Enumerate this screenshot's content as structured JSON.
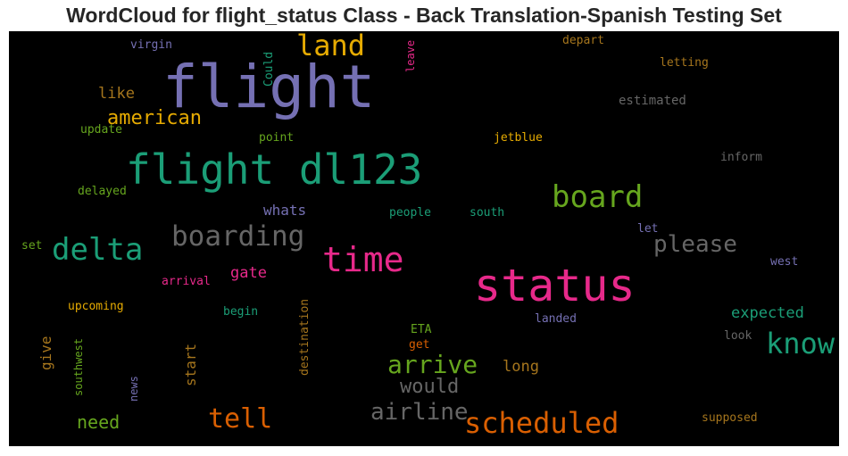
{
  "title": "WordCloud for flight_status Class - Back Translation-Spanish Testing Set",
  "palette": {
    "teal": "#1b9e77",
    "orange": "#d95f02",
    "purple": "#7570b3",
    "pink": "#e7298a",
    "green": "#66a61e",
    "gold": "#e6ab02",
    "brown": "#a6761d",
    "gray": "#666666",
    "background": "#000000"
  },
  "chart_data": {
    "type": "wordcloud",
    "words": [
      {
        "text": "flight",
        "color": "#7570b3",
        "vertical": false
      },
      {
        "text": "status",
        "color": "#e7298a",
        "vertical": false
      },
      {
        "text": "flight dl123",
        "color": "#1b9e77",
        "vertical": false
      },
      {
        "text": "time",
        "color": "#e7298a",
        "vertical": false
      },
      {
        "text": "scheduled",
        "color": "#d95f02",
        "vertical": false
      },
      {
        "text": "board",
        "color": "#66a61e",
        "vertical": false
      },
      {
        "text": "know",
        "color": "#1b9e77",
        "vertical": false
      },
      {
        "text": "delta",
        "color": "#1b9e77",
        "vertical": false
      },
      {
        "text": "boarding",
        "color": "#666666",
        "vertical": false
      },
      {
        "text": "land",
        "color": "#e6ab02",
        "vertical": false
      },
      {
        "text": "tell",
        "color": "#d95f02",
        "vertical": false
      },
      {
        "text": "arrive",
        "color": "#66a61e",
        "vertical": false
      },
      {
        "text": "airline",
        "color": "#666666",
        "vertical": false
      },
      {
        "text": "please",
        "color": "#666666",
        "vertical": false
      },
      {
        "text": "american",
        "color": "#e6ab02",
        "vertical": false
      },
      {
        "text": "would",
        "color": "#666666",
        "vertical": false
      },
      {
        "text": "need",
        "color": "#66a61e",
        "vertical": false
      },
      {
        "text": "expected",
        "color": "#1b9e77",
        "vertical": false
      },
      {
        "text": "like",
        "color": "#a6761d",
        "vertical": false
      },
      {
        "text": "gate",
        "color": "#e7298a",
        "vertical": false
      },
      {
        "text": "whats",
        "color": "#7570b3",
        "vertical": false
      },
      {
        "text": "long",
        "color": "#a6761d",
        "vertical": false
      },
      {
        "text": "start",
        "color": "#a6761d",
        "vertical": true
      },
      {
        "text": "give",
        "color": "#a6761d",
        "vertical": true
      },
      {
        "text": "estimated",
        "color": "#666666",
        "vertical": false
      },
      {
        "text": "letting",
        "color": "#a6761d",
        "vertical": false
      },
      {
        "text": "depart",
        "color": "#a6761d",
        "vertical": false
      },
      {
        "text": "jetblue",
        "color": "#e6ab02",
        "vertical": false
      },
      {
        "text": "inform",
        "color": "#666666",
        "vertical": false
      },
      {
        "text": "virgin",
        "color": "#7570b3",
        "vertical": false
      },
      {
        "text": "Could",
        "color": "#1b9e77",
        "vertical": true
      },
      {
        "text": "leave",
        "color": "#e7298a",
        "vertical": true
      },
      {
        "text": "update",
        "color": "#66a61e",
        "vertical": false
      },
      {
        "text": "point",
        "color": "#66a61e",
        "vertical": false
      },
      {
        "text": "delayed",
        "color": "#66a61e",
        "vertical": false
      },
      {
        "text": "people",
        "color": "#1b9e77",
        "vertical": false
      },
      {
        "text": "south",
        "color": "#1b9e77",
        "vertical": false
      },
      {
        "text": "let",
        "color": "#7570b3",
        "vertical": false
      },
      {
        "text": "west",
        "color": "#7570b3",
        "vertical": false
      },
      {
        "text": "set",
        "color": "#66a61e",
        "vertical": false
      },
      {
        "text": "arrival",
        "color": "#e7298a",
        "vertical": false
      },
      {
        "text": "upcoming",
        "color": "#e6ab02",
        "vertical": false
      },
      {
        "text": "begin",
        "color": "#1b9e77",
        "vertical": false
      },
      {
        "text": "destination",
        "color": "#a6761d",
        "vertical": true
      },
      {
        "text": "landed",
        "color": "#7570b3",
        "vertical": false
      },
      {
        "text": "ETA",
        "color": "#66a61e",
        "vertical": false
      },
      {
        "text": "get",
        "color": "#d95f02",
        "vertical": false
      },
      {
        "text": "look",
        "color": "#666666",
        "vertical": false
      },
      {
        "text": "southwest",
        "color": "#66a61e",
        "vertical": true
      },
      {
        "text": "news",
        "color": "#7570b3",
        "vertical": true
      },
      {
        "text": "supposed",
        "color": "#a6761d",
        "vertical": false
      }
    ]
  }
}
